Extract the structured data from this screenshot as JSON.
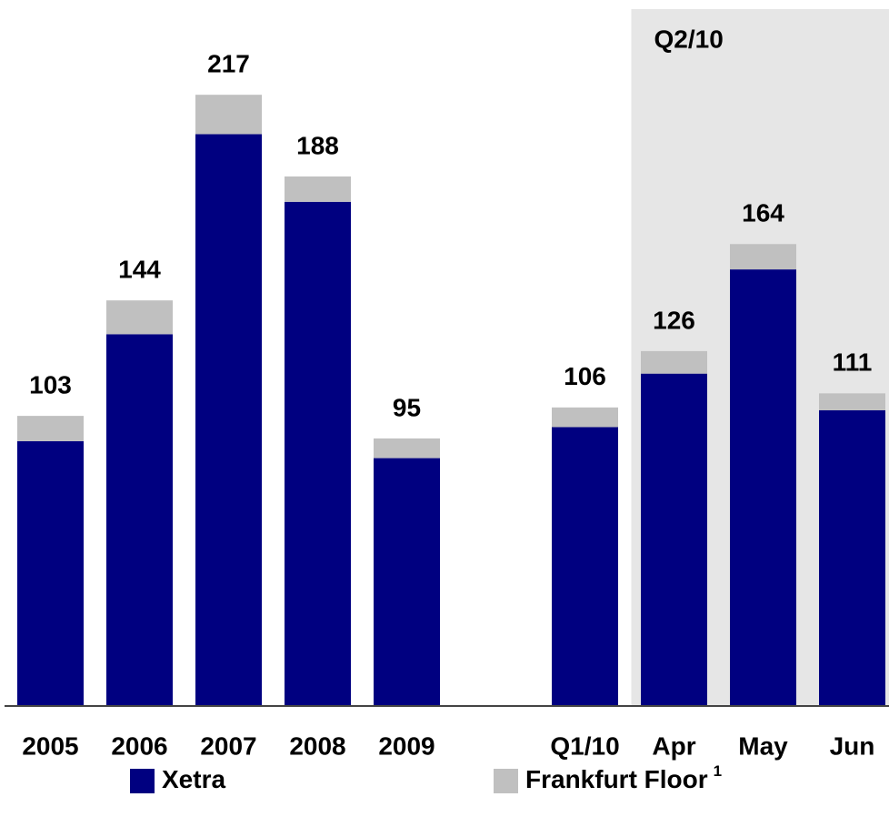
{
  "chart_data": {
    "type": "stacked_bar",
    "categories": [
      "2005",
      "2006",
      "2007",
      "2008",
      "2009",
      null,
      "Q1/10",
      "Apr",
      "May",
      "Jun"
    ],
    "series": [
      {
        "name": "Xetra",
        "color": "#000080",
        "values": [
          94,
          132,
          203,
          179,
          88,
          null,
          99,
          118,
          155,
          105
        ]
      },
      {
        "name": "Frankfurt Floor",
        "color": "#c0c0c0",
        "values": [
          9,
          12,
          14,
          9,
          7,
          null,
          7,
          8,
          9,
          6
        ]
      }
    ],
    "totals": [
      103,
      144,
      217,
      188,
      95,
      null,
      106,
      126,
      164,
      111
    ],
    "legend_footnote": "1",
    "highlight": {
      "label": "Q2/10",
      "from": "Apr",
      "to": "Jun",
      "color": "#e6e6e6"
    },
    "ylim": [
      0,
      250
    ]
  }
}
